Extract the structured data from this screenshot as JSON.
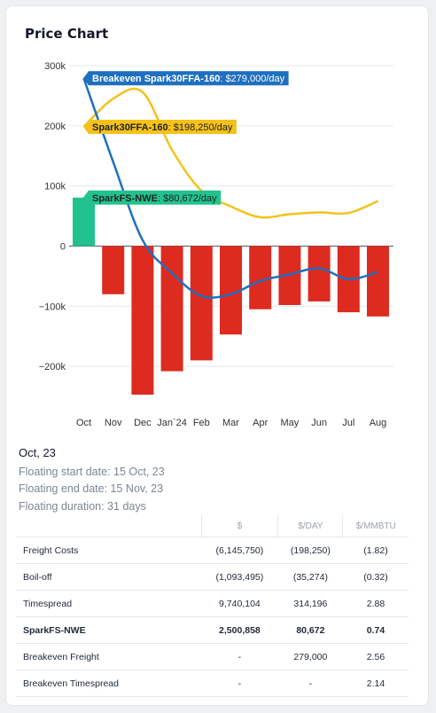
{
  "card": {
    "title": "Price Chart"
  },
  "chart_data": {
    "type": "bar",
    "categories": [
      "Oct",
      "Nov",
      "Dec",
      "Jan`24",
      "Feb",
      "Mar",
      "Apr",
      "May",
      "Jun",
      "Jul",
      "Aug"
    ],
    "y_ticks": [
      300000,
      200000,
      100000,
      0,
      -100000,
      -200000
    ],
    "y_tick_labels": [
      "300k",
      "200k",
      "100k",
      "0",
      "−100k",
      "−200k"
    ],
    "ylim": [
      -250000,
      300000
    ],
    "grid": true,
    "series": [
      {
        "name": "SparkFS-NWE",
        "kind": "bar",
        "values": [
          80672,
          -80000,
          -247000,
          -208000,
          -190000,
          -147000,
          -105000,
          -98000,
          -92000,
          -110000,
          -117000
        ],
        "positive_color": "#22c28e",
        "negative_color": "#de2b1f"
      },
      {
        "name": "Spark30FFA-160",
        "kind": "line",
        "values": [
          198250,
          245000,
          256000,
          160000,
          92000,
          66000,
          48000,
          53000,
          56000,
          55000,
          75000
        ],
        "color": "#f4c21b"
      },
      {
        "name": "Breakeven Spark30FFA-160",
        "kind": "line",
        "values": [
          279000,
          140000,
          10000,
          -45000,
          -83000,
          -80000,
          -58000,
          -47000,
          -37000,
          -55000,
          -43000
        ],
        "color": "#1f6fbf"
      }
    ],
    "annotations": [
      {
        "series": "Breakeven Spark30FFA-160",
        "name": "Breakeven Spark30FFA-160",
        "value_text": "$279,000/day",
        "value": 279000,
        "color": "#1f6fbf",
        "text_color": "#ffffff"
      },
      {
        "series": "Spark30FFA-160",
        "name": "Spark30FFA-160",
        "value_text": "$198,250/day",
        "value": 198250,
        "color": "#f4c21b",
        "text_color": "#222222"
      },
      {
        "series": "SparkFS-NWE",
        "name": "SparkFS-NWE",
        "value_text": "$80,672/day",
        "value": 80672,
        "color": "#22c28e",
        "text_color": "#222222"
      }
    ]
  },
  "details": {
    "period": "Oct, 23",
    "start": "Floating start date: 15 Oct, 23",
    "end": "Floating end date: 15 Nov, 23",
    "duration": "Floating duration: 31 days"
  },
  "table": {
    "headers": [
      "",
      "$",
      "$/DAY",
      "$/MMBTU"
    ],
    "rows": [
      {
        "label": "Freight Costs",
        "total": "(6,145,750)",
        "per_day": "(198,250)",
        "per_mmbtu": "(1.82)",
        "bold": false
      },
      {
        "label": "Boil-off",
        "total": "(1,093,495)",
        "per_day": "(35,274)",
        "per_mmbtu": "(0.32)",
        "bold": false
      },
      {
        "label": "Timespread",
        "total": "9,740,104",
        "per_day": "314,196",
        "per_mmbtu": "2.88",
        "bold": false
      },
      {
        "label": "SparkFS-NWE",
        "total": "2,500,858",
        "per_day": "80,672",
        "per_mmbtu": "0.74",
        "bold": true
      },
      {
        "label": "Breakeven Freight",
        "total": "-",
        "per_day": "279,000",
        "per_mmbtu": "2.56",
        "bold": false
      },
      {
        "label": "Breakeven Timespread",
        "total": "-",
        "per_day": "-",
        "per_mmbtu": "2.14",
        "bold": false
      }
    ]
  }
}
